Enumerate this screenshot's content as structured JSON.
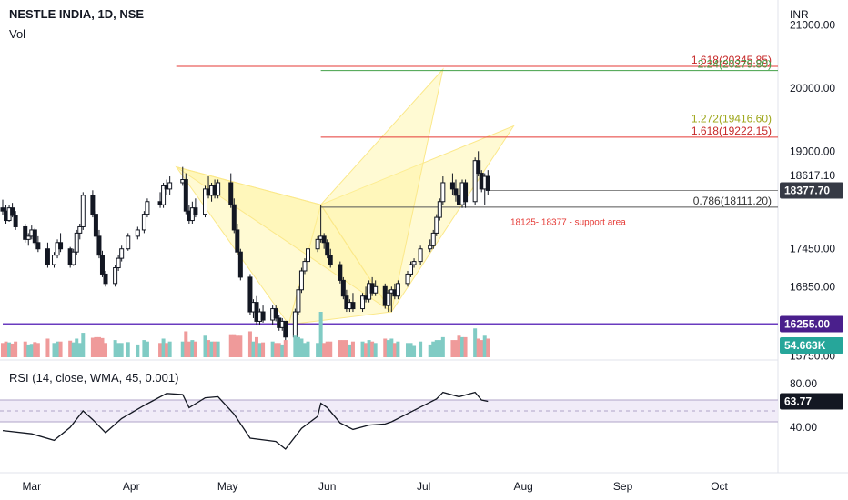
{
  "header": {
    "title": "NESTLE INDIA, 1D, NSE",
    "vol_label": "Vol",
    "rsi_label": "RSI (14, close, WMA, 45, 0.001)"
  },
  "chart_data": {
    "type": "candlestick",
    "currency_label": "INR",
    "price_ticks": [
      "21000.00",
      "20000.00",
      "19000.00",
      "18617.10",
      "17450.00",
      "16850.00",
      "15750.00"
    ],
    "price_tick_values": [
      21000,
      20000,
      19000,
      18617.1,
      17450,
      16850,
      15750
    ],
    "y_range": [
      15700,
      21400
    ],
    "x_months": [
      "Mar",
      "Apr",
      "May",
      "Jun",
      "Jul",
      "Aug",
      "Sep",
      "Oct"
    ],
    "price_badges": [
      {
        "text": "18377.70",
        "value": 18377.7,
        "bg": "#363a45",
        "fg": "#ffffff"
      },
      {
        "text": "16255.00",
        "value": 16255,
        "bg": "#4a1f8c",
        "fg": "#ffffff"
      }
    ],
    "volume_badge": {
      "text": "54.663K",
      "bg": "#26a69a",
      "fg": "#ffffff"
    },
    "rsi_badge": {
      "text": "63.77",
      "value": 63.77,
      "bg": "#131722",
      "fg": "#ffffff"
    },
    "rsi_ticks": [
      {
        "text": "80.00",
        "value": 80
      },
      {
        "text": "40.00",
        "value": 40
      }
    ],
    "rsi_band": [
      45,
      65
    ],
    "horizontal_lines": [
      {
        "label": "1.618(20345.85)",
        "value": 20345.85,
        "color": "#e53935",
        "label_color": "#c62828",
        "start": "2023-04-15"
      },
      {
        "label": "2.24(20279.80)",
        "value": 20279.8,
        "color": "#43a047",
        "label_color": "#43a047",
        "start": "2023-05-30"
      },
      {
        "label": "1.272(19416.60)",
        "value": 19416.6,
        "color": "#c0ca33",
        "label_color": "#9ea71a",
        "start": "2023-04-15"
      },
      {
        "label": "1.618(19222.15)",
        "value": 19222.15,
        "color": "#e53935",
        "label_color": "#c62828",
        "start": "2023-05-30"
      },
      {
        "label": "0.786(18111.20)",
        "value": 18111.2,
        "color": "#555555",
        "label_color": "#333333",
        "start": "2023-05-30"
      },
      {
        "label": "",
        "value": 18377.7,
        "color": "#888888",
        "label_color": "#888888",
        "start": "2023-07-21"
      },
      {
        "label": "",
        "value": 16255,
        "color": "#6a3bbf",
        "label_color": "#6a3bbf",
        "start": "2023-02-20"
      }
    ],
    "annotation": {
      "text": "18125- 18377 - support area",
      "color": "#e53935",
      "date": "2023-07-28",
      "value": 18000
    },
    "harmonic_patterns": [
      {
        "points": [
          [
            "2023-04-15",
            18750
          ],
          [
            "2023-05-20",
            16250
          ],
          [
            "2023-05-30",
            18150
          ],
          [
            "2023-06-21",
            16450
          ],
          [
            "2023-07-29",
            19400
          ]
        ]
      },
      {
        "points": [
          [
            "2023-04-15",
            18750
          ],
          [
            "2023-05-30",
            18150
          ],
          [
            "2023-06-21",
            16450
          ],
          [
            "2023-07-07",
            20300
          ]
        ]
      }
    ],
    "candles": [
      {
        "date": "2023-02-20",
        "open": 18100,
        "high": 18230,
        "low": 17980,
        "close": 18050
      },
      {
        "date": "2023-02-21",
        "open": 18050,
        "high": 18150,
        "low": 17850,
        "close": 17900
      },
      {
        "date": "2023-02-22",
        "open": 17900,
        "high": 18150,
        "low": 17880,
        "close": 18100
      },
      {
        "date": "2023-02-23",
        "open": 18100,
        "high": 18180,
        "low": 17950,
        "close": 17980
      },
      {
        "date": "2023-02-24",
        "open": 17980,
        "high": 18050,
        "low": 17750,
        "close": 17800
      },
      {
        "date": "2023-02-27",
        "open": 17800,
        "high": 17850,
        "low": 17550,
        "close": 17600
      },
      {
        "date": "2023-02-28",
        "open": 17600,
        "high": 17700,
        "low": 17500,
        "close": 17650
      },
      {
        "date": "2023-03-01",
        "open": 17650,
        "high": 17820,
        "low": 17600,
        "close": 17750
      },
      {
        "date": "2023-03-02",
        "open": 17750,
        "high": 17780,
        "low": 17500,
        "close": 17550
      },
      {
        "date": "2023-03-03",
        "open": 17550,
        "high": 17650,
        "low": 17400,
        "close": 17450
      },
      {
        "date": "2023-03-06",
        "open": 17450,
        "high": 17550,
        "low": 17150,
        "close": 17200
      },
      {
        "date": "2023-03-08",
        "open": 17200,
        "high": 17400,
        "low": 17150,
        "close": 17350
      },
      {
        "date": "2023-03-09",
        "open": 17350,
        "high": 17600,
        "low": 17300,
        "close": 17550
      },
      {
        "date": "2023-03-10",
        "open": 17550,
        "high": 17700,
        "low": 17400,
        "close": 17450
      },
      {
        "date": "2023-03-13",
        "open": 17450,
        "high": 17480,
        "low": 17150,
        "close": 17200
      },
      {
        "date": "2023-03-14",
        "open": 17200,
        "high": 17450,
        "low": 17180,
        "close": 17400
      },
      {
        "date": "2023-03-15",
        "open": 17400,
        "high": 17750,
        "low": 17350,
        "close": 17700
      },
      {
        "date": "2023-03-16",
        "open": 17700,
        "high": 17850,
        "low": 17600,
        "close": 17800
      },
      {
        "date": "2023-03-17",
        "open": 17800,
        "high": 18350,
        "low": 17750,
        "close": 18300
      },
      {
        "date": "2023-03-20",
        "open": 18300,
        "high": 18380,
        "low": 17950,
        "close": 18000
      },
      {
        "date": "2023-03-21",
        "open": 18000,
        "high": 18050,
        "low": 17600,
        "close": 17650
      },
      {
        "date": "2023-03-22",
        "open": 17650,
        "high": 17750,
        "low": 17300,
        "close": 17350
      },
      {
        "date": "2023-03-23",
        "open": 17350,
        "high": 17420,
        "low": 17000,
        "close": 17050
      },
      {
        "date": "2023-03-24",
        "open": 17050,
        "high": 17100,
        "low": 16850,
        "close": 16900
      },
      {
        "date": "2023-03-27",
        "open": 16900,
        "high": 17200,
        "low": 16850,
        "close": 17150
      },
      {
        "date": "2023-03-28",
        "open": 17150,
        "high": 17350,
        "low": 17100,
        "close": 17300
      },
      {
        "date": "2023-03-29",
        "open": 17300,
        "high": 17500,
        "low": 17250,
        "close": 17450
      },
      {
        "date": "2023-03-31",
        "open": 17450,
        "high": 17700,
        "low": 17420,
        "close": 17650
      },
      {
        "date": "2023-04-03",
        "open": 17650,
        "high": 17800,
        "low": 17600,
        "close": 17750
      },
      {
        "date": "2023-04-05",
        "open": 17750,
        "high": 18050,
        "low": 17700,
        "close": 18000
      },
      {
        "date": "2023-04-06",
        "open": 18000,
        "high": 18250,
        "low": 17950,
        "close": 18200
      },
      {
        "date": "2023-04-10",
        "open": 18200,
        "high": 18350,
        "low": 18100,
        "close": 18150
      },
      {
        "date": "2023-04-11",
        "open": 18150,
        "high": 18500,
        "low": 18100,
        "close": 18450
      },
      {
        "date": "2023-04-12",
        "open": 18450,
        "high": 18550,
        "low": 18300,
        "close": 18400
      },
      {
        "date": "2023-04-13",
        "open": 18400,
        "high": 18600,
        "low": 18300,
        "close": 18500
      },
      {
        "date": "2023-04-17",
        "open": 18500,
        "high": 18750,
        "low": 18450,
        "close": 18550
      },
      {
        "date": "2023-04-18",
        "open": 18550,
        "high": 18650,
        "low": 18000,
        "close": 18050
      },
      {
        "date": "2023-04-19",
        "open": 18050,
        "high": 18150,
        "low": 17850,
        "close": 17900
      },
      {
        "date": "2023-04-20",
        "open": 17900,
        "high": 18200,
        "low": 17850,
        "close": 18100
      },
      {
        "date": "2023-04-21",
        "open": 18100,
        "high": 18250,
        "low": 17950,
        "close": 18000
      },
      {
        "date": "2023-04-24",
        "open": 18000,
        "high": 18450,
        "low": 17950,
        "close": 18400
      },
      {
        "date": "2023-04-25",
        "open": 18400,
        "high": 18600,
        "low": 18250,
        "close": 18300
      },
      {
        "date": "2023-04-26",
        "open": 18300,
        "high": 18500,
        "low": 18200,
        "close": 18450
      },
      {
        "date": "2023-04-27",
        "open": 18450,
        "high": 18550,
        "low": 18250,
        "close": 18300
      },
      {
        "date": "2023-04-28",
        "open": 18300,
        "high": 18550,
        "low": 18250,
        "close": 18500
      },
      {
        "date": "2023-05-02",
        "open": 18500,
        "high": 18650,
        "low": 18100,
        "close": 18150
      },
      {
        "date": "2023-05-03",
        "open": 18150,
        "high": 18250,
        "low": 17700,
        "close": 17750
      },
      {
        "date": "2023-05-04",
        "open": 17750,
        "high": 17850,
        "low": 17350,
        "close": 17400
      },
      {
        "date": "2023-05-05",
        "open": 17400,
        "high": 17450,
        "low": 16950,
        "close": 17000
      },
      {
        "date": "2023-05-08",
        "open": 17000,
        "high": 17050,
        "low": 16400,
        "close": 16450
      },
      {
        "date": "2023-05-09",
        "open": 16450,
        "high": 16650,
        "low": 16350,
        "close": 16600
      },
      {
        "date": "2023-05-10",
        "open": 16600,
        "high": 16700,
        "low": 16250,
        "close": 16300
      },
      {
        "date": "2023-05-11",
        "open": 16300,
        "high": 16500,
        "low": 16250,
        "close": 16450
      },
      {
        "date": "2023-05-12",
        "open": 16450,
        "high": 16550,
        "low": 16280,
        "close": 16320
      },
      {
        "date": "2023-05-15",
        "open": 16320,
        "high": 16550,
        "low": 16250,
        "close": 16500
      },
      {
        "date": "2023-05-16",
        "open": 16500,
        "high": 16550,
        "low": 16300,
        "close": 16350
      },
      {
        "date": "2023-05-17",
        "open": 16350,
        "high": 16400,
        "low": 16150,
        "close": 16200
      },
      {
        "date": "2023-05-18",
        "open": 16200,
        "high": 16350,
        "low": 16150,
        "close": 16300
      },
      {
        "date": "2023-05-19",
        "open": 16300,
        "high": 16300,
        "low": 15950,
        "close": 16050
      },
      {
        "date": "2023-05-22",
        "open": 16050,
        "high": 16500,
        "low": 16000,
        "close": 16450
      },
      {
        "date": "2023-05-23",
        "open": 16450,
        "high": 16850,
        "low": 16400,
        "close": 16800
      },
      {
        "date": "2023-05-24",
        "open": 16800,
        "high": 17150,
        "low": 16750,
        "close": 17100
      },
      {
        "date": "2023-05-25",
        "open": 17100,
        "high": 17300,
        "low": 17050,
        "close": 17250
      },
      {
        "date": "2023-05-26",
        "open": 17250,
        "high": 17500,
        "low": 17200,
        "close": 17450
      },
      {
        "date": "2023-05-29",
        "open": 17450,
        "high": 17650,
        "low": 17400,
        "close": 17600
      },
      {
        "date": "2023-05-30",
        "open": 17600,
        "high": 18150,
        "low": 17550,
        "close": 17650
      },
      {
        "date": "2023-05-31",
        "open": 17650,
        "high": 17700,
        "low": 17450,
        "close": 17550
      },
      {
        "date": "2023-06-01",
        "open": 17550,
        "high": 17600,
        "low": 17300,
        "close": 17350
      },
      {
        "date": "2023-06-02",
        "open": 17350,
        "high": 17450,
        "low": 17150,
        "close": 17200
      },
      {
        "date": "2023-06-05",
        "open": 17200,
        "high": 17250,
        "low": 16900,
        "close": 16950
      },
      {
        "date": "2023-06-06",
        "open": 16950,
        "high": 17000,
        "low": 16650,
        "close": 16700
      },
      {
        "date": "2023-06-07",
        "open": 16700,
        "high": 16800,
        "low": 16450,
        "close": 16500
      },
      {
        "date": "2023-06-08",
        "open": 16500,
        "high": 16650,
        "low": 16450,
        "close": 16600
      },
      {
        "date": "2023-06-09",
        "open": 16600,
        "high": 16750,
        "low": 16450,
        "close": 16500
      },
      {
        "date": "2023-06-12",
        "open": 16500,
        "high": 16750,
        "low": 16450,
        "close": 16700
      },
      {
        "date": "2023-06-13",
        "open": 16700,
        "high": 16850,
        "low": 16600,
        "close": 16650
      },
      {
        "date": "2023-06-14",
        "open": 16650,
        "high": 16950,
        "low": 16600,
        "close": 16900
      },
      {
        "date": "2023-06-15",
        "open": 16900,
        "high": 17000,
        "low": 16700,
        "close": 16750
      },
      {
        "date": "2023-06-16",
        "open": 16750,
        "high": 16950,
        "low": 16700,
        "close": 16850
      },
      {
        "date": "2023-06-19",
        "open": 16850,
        "high": 16900,
        "low": 16500,
        "close": 16550
      },
      {
        "date": "2023-06-20",
        "open": 16550,
        "high": 16800,
        "low": 16450,
        "close": 16750
      },
      {
        "date": "2023-06-21",
        "open": 16750,
        "high": 16850,
        "low": 16450,
        "close": 16800
      },
      {
        "date": "2023-06-22",
        "open": 16800,
        "high": 16900,
        "low": 16650,
        "close": 16700
      },
      {
        "date": "2023-06-23",
        "open": 16700,
        "high": 16950,
        "low": 16650,
        "close": 16900
      },
      {
        "date": "2023-06-26",
        "open": 16900,
        "high": 17100,
        "low": 16850,
        "close": 17050
      },
      {
        "date": "2023-06-27",
        "open": 17050,
        "high": 17250,
        "low": 17000,
        "close": 17200
      },
      {
        "date": "2023-06-28",
        "open": 17200,
        "high": 17300,
        "low": 17150,
        "close": 17250
      },
      {
        "date": "2023-06-30",
        "open": 17250,
        "high": 17500,
        "low": 17200,
        "close": 17450
      },
      {
        "date": "2023-07-03",
        "open": 17450,
        "high": 17600,
        "low": 17400,
        "close": 17500
      },
      {
        "date": "2023-07-04",
        "open": 17500,
        "high": 17750,
        "low": 17450,
        "close": 17700
      },
      {
        "date": "2023-07-05",
        "open": 17700,
        "high": 18000,
        "low": 17650,
        "close": 17950
      },
      {
        "date": "2023-07-06",
        "open": 17950,
        "high": 18250,
        "low": 17900,
        "close": 18200
      },
      {
        "date": "2023-07-07",
        "open": 18200,
        "high": 18600,
        "low": 18150,
        "close": 18500
      },
      {
        "date": "2023-07-10",
        "open": 18500,
        "high": 18650,
        "low": 18300,
        "close": 18400
      },
      {
        "date": "2023-07-11",
        "open": 18400,
        "high": 18550,
        "low": 18200,
        "close": 18300
      },
      {
        "date": "2023-07-12",
        "open": 18300,
        "high": 18600,
        "low": 18100,
        "close": 18150
      },
      {
        "date": "2023-07-13",
        "open": 18150,
        "high": 18550,
        "low": 18100,
        "close": 18500
      },
      {
        "date": "2023-07-14",
        "open": 18500,
        "high": 18550,
        "low": 18100,
        "close": 18200
      },
      {
        "date": "2023-07-17",
        "open": 18200,
        "high": 18900,
        "low": 18150,
        "close": 18850
      },
      {
        "date": "2023-07-18",
        "open": 18850,
        "high": 19000,
        "low": 18600,
        "close": 18650
      },
      {
        "date": "2023-07-19",
        "open": 18650,
        "high": 18700,
        "low": 18350,
        "close": 18400
      },
      {
        "date": "2023-07-20",
        "open": 18400,
        "high": 18650,
        "low": 18150,
        "close": 18600
      },
      {
        "date": "2023-07-21",
        "open": 18600,
        "high": 18700,
        "low": 18300,
        "close": 18377.7
      }
    ],
    "rsi": [
      [
        "2023-02-20",
        37
      ],
      [
        "2023-03-01",
        34
      ],
      [
        "2023-03-08",
        28
      ],
      [
        "2023-03-13",
        40
      ],
      [
        "2023-03-17",
        55
      ],
      [
        "2023-03-20",
        47
      ],
      [
        "2023-03-24",
        35
      ],
      [
        "2023-03-29",
        48
      ],
      [
        "2023-04-05",
        60
      ],
      [
        "2023-04-12",
        71
      ],
      [
        "2023-04-17",
        70
      ],
      [
        "2023-04-19",
        58
      ],
      [
        "2023-04-24",
        67
      ],
      [
        "2023-04-28",
        68
      ],
      [
        "2023-05-03",
        52
      ],
      [
        "2023-05-08",
        30
      ],
      [
        "2023-05-16",
        27
      ],
      [
        "2023-05-19",
        20
      ],
      [
        "2023-05-24",
        39
      ],
      [
        "2023-05-29",
        50
      ],
      [
        "2023-05-30",
        62
      ],
      [
        "2023-06-01",
        58
      ],
      [
        "2023-06-05",
        44
      ],
      [
        "2023-06-09",
        38
      ],
      [
        "2023-06-14",
        42
      ],
      [
        "2023-06-19",
        43
      ],
      [
        "2023-06-21",
        45
      ],
      [
        "2023-06-27",
        54
      ],
      [
        "2023-07-05",
        66
      ],
      [
        "2023-07-07",
        72
      ],
      [
        "2023-07-12",
        68
      ],
      [
        "2023-07-17",
        72
      ],
      [
        "2023-07-19",
        65
      ],
      [
        "2023-07-21",
        63.77
      ]
    ],
    "volume_max": 130,
    "volume_spikes": [
      {
        "date": "2023-05-30",
        "value": 130
      }
    ]
  }
}
